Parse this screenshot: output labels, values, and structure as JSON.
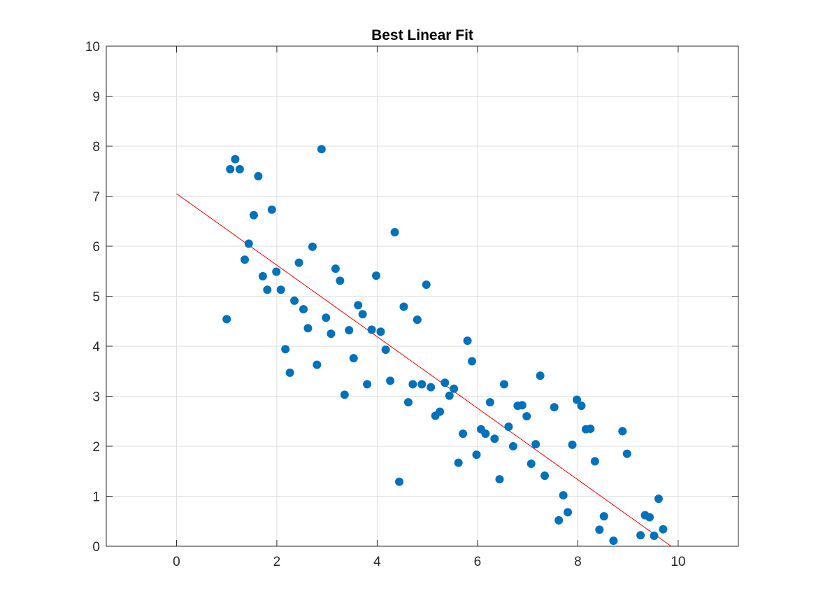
{
  "chart_data": {
    "type": "scatter",
    "title": "Best Linear Fit",
    "xlabel": "",
    "ylabel": "",
    "xlim": [
      -1.4,
      11.2
    ],
    "ylim": [
      0,
      10
    ],
    "x_ticks": [
      0,
      2,
      4,
      6,
      8,
      10
    ],
    "y_ticks": [
      0,
      1,
      2,
      3,
      4,
      5,
      6,
      7,
      8,
      9,
      10
    ],
    "grid": true,
    "box": true,
    "marker_color": "#0072BD",
    "fit_color": "#FF0000",
    "series": [
      {
        "type": "scatter",
        "points": [
          [
            1.0,
            4.54
          ],
          [
            1.07,
            7.54
          ],
          [
            1.17,
            7.74
          ],
          [
            1.26,
            7.54
          ],
          [
            1.36,
            5.73
          ],
          [
            1.44,
            6.05
          ],
          [
            1.54,
            6.62
          ],
          [
            1.63,
            7.4
          ],
          [
            1.72,
            5.4
          ],
          [
            1.81,
            5.13
          ],
          [
            1.9,
            6.73
          ],
          [
            1.99,
            5.49
          ],
          [
            2.08,
            5.13
          ],
          [
            2.17,
            3.94
          ],
          [
            2.26,
            3.47
          ],
          [
            2.35,
            4.91
          ],
          [
            2.44,
            5.67
          ],
          [
            2.53,
            4.74
          ],
          [
            2.62,
            4.36
          ],
          [
            2.71,
            5.99
          ],
          [
            2.8,
            3.63
          ],
          [
            2.89,
            7.94
          ],
          [
            2.98,
            4.57
          ],
          [
            3.08,
            4.25
          ],
          [
            3.17,
            5.55
          ],
          [
            3.26,
            5.31
          ],
          [
            3.35,
            3.03
          ],
          [
            3.44,
            4.32
          ],
          [
            3.53,
            3.76
          ],
          [
            3.62,
            4.82
          ],
          [
            3.71,
            4.64
          ],
          [
            3.8,
            3.24
          ],
          [
            3.89,
            4.33
          ],
          [
            3.98,
            5.41
          ],
          [
            4.07,
            4.29
          ],
          [
            4.17,
            3.93
          ],
          [
            4.26,
            3.31
          ],
          [
            4.35,
            6.28
          ],
          [
            4.44,
            1.29
          ],
          [
            4.53,
            4.79
          ],
          [
            4.62,
            2.88
          ],
          [
            4.71,
            3.24
          ],
          [
            4.8,
            4.53
          ],
          [
            4.89,
            3.24
          ],
          [
            4.98,
            5.23
          ],
          [
            5.07,
            3.18
          ],
          [
            5.16,
            2.61
          ],
          [
            5.25,
            2.69
          ],
          [
            5.35,
            3.27
          ],
          [
            5.44,
            3.01
          ],
          [
            5.53,
            3.15
          ],
          [
            5.62,
            1.67
          ],
          [
            5.71,
            2.25
          ],
          [
            5.8,
            4.11
          ],
          [
            5.89,
            3.7
          ],
          [
            5.98,
            1.83
          ],
          [
            6.07,
            2.34
          ],
          [
            6.16,
            2.25
          ],
          [
            6.25,
            2.88
          ],
          [
            6.34,
            2.15
          ],
          [
            6.44,
            1.34
          ],
          [
            6.53,
            3.24
          ],
          [
            6.62,
            2.39
          ],
          [
            6.71,
            2.0
          ],
          [
            6.8,
            2.81
          ],
          [
            6.89,
            2.82
          ],
          [
            6.98,
            2.6
          ],
          [
            7.07,
            1.65
          ],
          [
            7.16,
            2.04
          ],
          [
            7.25,
            3.41
          ],
          [
            7.34,
            1.41
          ],
          [
            7.53,
            2.78
          ],
          [
            7.62,
            0.52
          ],
          [
            7.71,
            1.02
          ],
          [
            7.8,
            0.68
          ],
          [
            7.89,
            2.03
          ],
          [
            7.98,
            2.93
          ],
          [
            8.07,
            2.81
          ],
          [
            8.16,
            2.34
          ],
          [
            8.25,
            2.35
          ],
          [
            8.34,
            1.7
          ],
          [
            8.43,
            0.33
          ],
          [
            8.52,
            0.6
          ],
          [
            8.71,
            0.11
          ],
          [
            8.89,
            2.3
          ],
          [
            8.98,
            1.85
          ],
          [
            9.25,
            0.22
          ],
          [
            9.34,
            0.62
          ],
          [
            9.43,
            0.58
          ],
          [
            9.52,
            0.21
          ],
          [
            9.61,
            0.95
          ],
          [
            9.7,
            0.34
          ]
        ]
      },
      {
        "type": "line",
        "points": [
          [
            0,
            7.05
          ],
          [
            9.86,
            0
          ]
        ]
      }
    ]
  }
}
